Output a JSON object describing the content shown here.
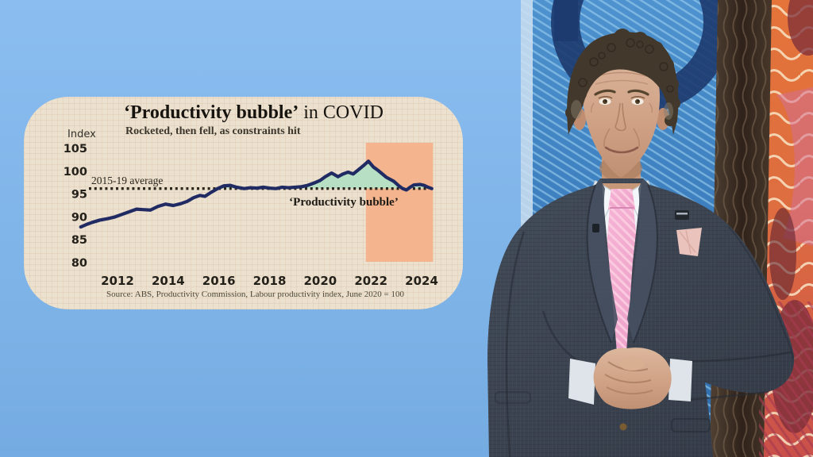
{
  "chart": {
    "title_bold": "‘Productivity bubble’",
    "title_rest": " in COVID",
    "subtitle": "Rocketed, then fell, as constraints hit",
    "y_axis_label": "Index",
    "average_label": "2015-19 average",
    "annotation": "‘Productivity bubble’",
    "source": "Source: ABS, Productivity Commission, Labour productivity index, June 2020 = 100"
  },
  "chart_data": {
    "type": "line",
    "title": "‘Productivity bubble’ in COVID",
    "subtitle": "Rocketed, then fell, as constraints hit",
    "ylabel": "Index",
    "ylim": [
      80,
      105
    ],
    "yticks": [
      105,
      100,
      95,
      90,
      85,
      80
    ],
    "xticks": [
      2012,
      2014,
      2016,
      2018,
      2020,
      2022,
      2024
    ],
    "xlim": [
      2010.45,
      2024.55
    ],
    "grid": false,
    "average_line": {
      "value": 96.2,
      "label": "2015-19 average",
      "style": "dotted"
    },
    "highlight_band": {
      "x0": 2021.8,
      "x1": 2024.45,
      "color": "#f3b48e"
    },
    "fill_above_average": {
      "color": "#b7dfc3",
      "label": "‘Productivity bubble’"
    },
    "series": [
      {
        "name": "Labour productivity index, June 2020 = 100",
        "color": "#202a63",
        "x": [
          2010.55,
          2010.8,
          2011.0,
          2011.3,
          2011.6,
          2011.9,
          2012.2,
          2012.5,
          2012.75,
          2013.0,
          2013.3,
          2013.6,
          2013.9,
          2014.2,
          2014.5,
          2014.75,
          2015.0,
          2015.25,
          2015.45,
          2015.7,
          2015.95,
          2016.2,
          2016.45,
          2016.7,
          2017.0,
          2017.25,
          2017.5,
          2017.75,
          2018.0,
          2018.25,
          2018.5,
          2018.75,
          2019.0,
          2019.25,
          2019.5,
          2019.75,
          2020.0,
          2020.2,
          2020.45,
          2020.7,
          2020.9,
          2021.1,
          2021.3,
          2021.5,
          2021.7,
          2021.9,
          2022.1,
          2022.3,
          2022.45,
          2022.6,
          2022.9,
          2023.1,
          2023.25,
          2023.4,
          2023.55,
          2023.7,
          2023.95,
          2024.1,
          2024.25,
          2024.4
        ],
        "y": [
          87.8,
          88.4,
          88.8,
          89.3,
          89.6,
          90.0,
          90.6,
          91.2,
          91.7,
          91.6,
          91.5,
          92.3,
          92.8,
          92.5,
          92.9,
          93.4,
          94.2,
          94.7,
          94.5,
          95.4,
          96.2,
          96.8,
          96.9,
          96.5,
          96.2,
          96.4,
          96.3,
          96.5,
          96.3,
          96.2,
          96.5,
          96.4,
          96.5,
          96.6,
          96.9,
          97.4,
          98.0,
          98.8,
          99.6,
          98.8,
          99.4,
          99.8,
          99.4,
          100.3,
          101.2,
          102.2,
          100.9,
          100.1,
          99.4,
          98.7,
          97.8,
          96.8,
          96.2,
          95.9,
          96.5,
          97.0,
          97.1,
          96.9,
          96.5,
          96.2
        ]
      }
    ],
    "source": "Source: ABS, Productivity Commission, Labour productivity index, June 2020 = 100"
  },
  "colors": {
    "wall": "#7cb2e6",
    "card": "#ece1ce",
    "line": "#202a63",
    "band": "#f3b48e",
    "bubble_fill": "#b7dfc3",
    "dotted": "#2b251c"
  }
}
